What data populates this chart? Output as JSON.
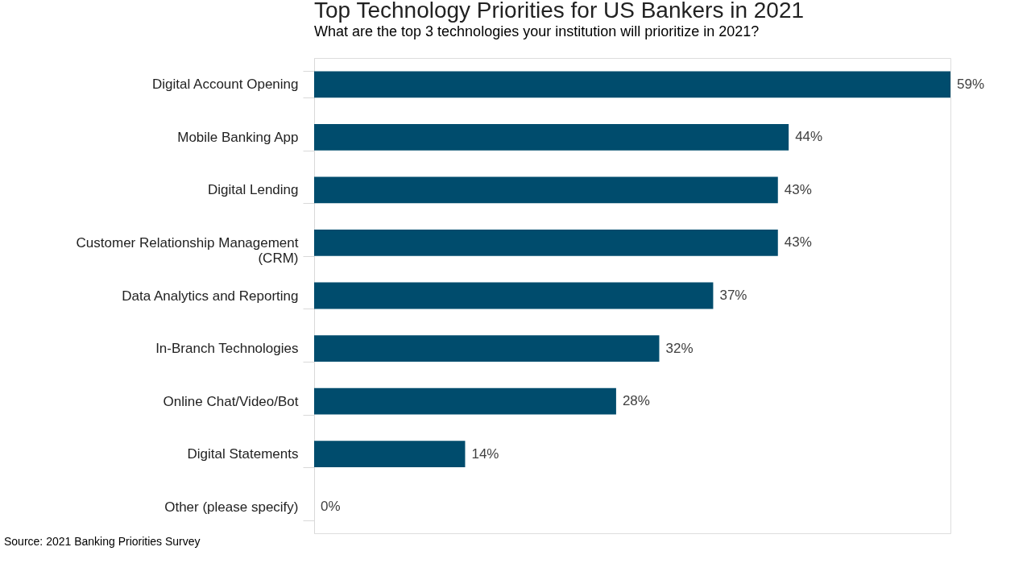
{
  "chart_data": {
    "type": "bar",
    "orientation": "horizontal",
    "title": "Top Technology Priorities for US Bankers in 2021",
    "subtitle": "What are the top 3 technologies your institution will prioritize in 2021?",
    "categories": [
      "Digital Account Opening",
      "Mobile Banking App",
      "Digital Lending",
      "Customer Relationship Management\n(CRM)",
      "Data Analytics and Reporting",
      "In-Branch Technologies",
      "Online Chat/Video/Bot",
      "Digital Statements",
      "Other (please specify)"
    ],
    "values": [
      59,
      44,
      43,
      43,
      37,
      32,
      28,
      14,
      0
    ],
    "value_labels": [
      "59%",
      "44%",
      "43%",
      "43%",
      "37%",
      "32%",
      "28%",
      "14%",
      "0%"
    ],
    "color": "#004c6d",
    "tick_labels": "y",
    "grid": false,
    "annotations": [
      "Source: 2021 Banking Priorities Survey"
    ]
  }
}
